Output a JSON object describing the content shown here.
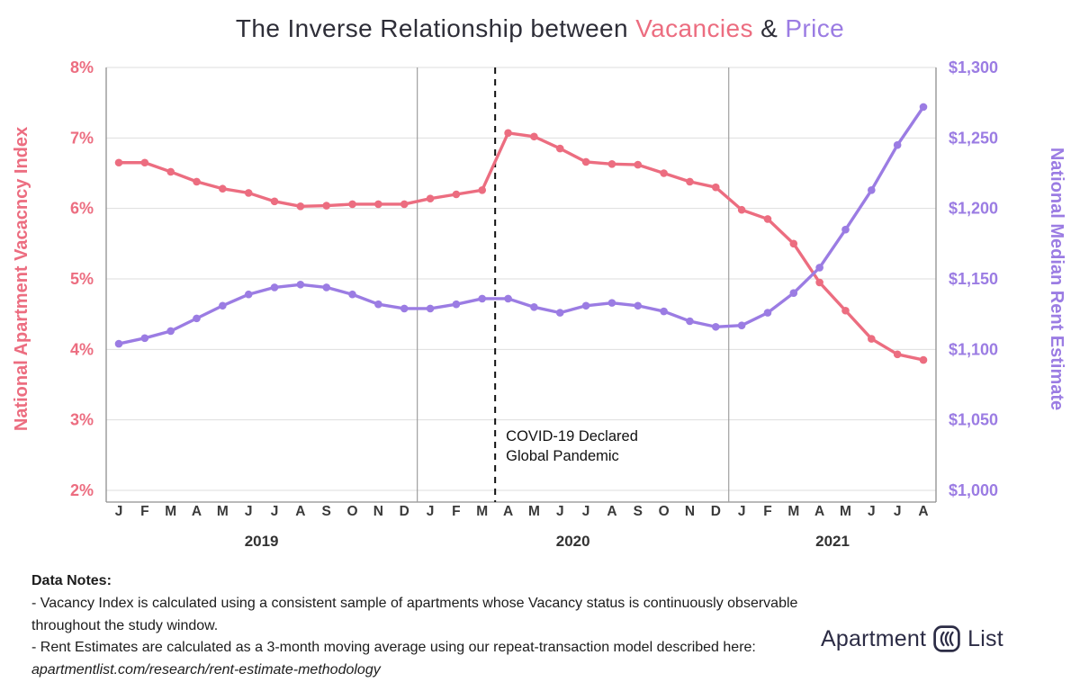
{
  "title": {
    "prefix": "The Inverse Relationship between ",
    "vacancies": "Vacancies",
    "amp": " & ",
    "price": "Price"
  },
  "colors": {
    "vacancy": "#ec6d80",
    "rent": "#9b7ce3",
    "title_dark": "#2e2e38",
    "grid": "#dedede",
    "axis": "#8f8f8f",
    "label_dark": "#333333"
  },
  "chart_data": {
    "type": "line",
    "months": [
      "J",
      "F",
      "M",
      "A",
      "M",
      "J",
      "J",
      "A",
      "S",
      "O",
      "N",
      "D",
      "J",
      "F",
      "M",
      "A",
      "M",
      "J",
      "J",
      "A",
      "S",
      "O",
      "N",
      "D",
      "J",
      "F",
      "M",
      "A",
      "M",
      "J",
      "J",
      "A"
    ],
    "years": [
      {
        "label": "2019",
        "start": 0,
        "end": 11
      },
      {
        "label": "2020",
        "start": 12,
        "end": 23
      },
      {
        "label": "2021",
        "start": 24,
        "end": 31
      }
    ],
    "series": [
      {
        "name": "National Apartment Vacancy Index",
        "axis": "left",
        "color": "#ec6d80",
        "values": [
          6.65,
          6.65,
          6.52,
          6.38,
          6.28,
          6.22,
          6.1,
          6.03,
          6.04,
          6.06,
          6.06,
          6.06,
          6.14,
          6.2,
          6.26,
          7.07,
          7.02,
          6.85,
          6.66,
          6.63,
          6.62,
          6.5,
          6.38,
          6.3,
          5.98,
          5.85,
          5.5,
          4.95,
          4.55,
          4.15,
          3.93,
          3.85
        ]
      },
      {
        "name": "National Median Rent Estimate",
        "axis": "right",
        "color": "#9b7ce3",
        "values": [
          1104,
          1108,
          1113,
          1122,
          1131,
          1139,
          1144,
          1146,
          1144,
          1139,
          1132,
          1129,
          1129,
          1132,
          1136,
          1136,
          1130,
          1126,
          1131,
          1133,
          1131,
          1127,
          1120,
          1116,
          1117,
          1126,
          1140,
          1158,
          1185,
          1213,
          1245,
          1272
        ]
      }
    ],
    "left_axis": {
      "title": "National Apartment Vacacncy Index",
      "ticks": [
        "8%",
        "7%",
        "6%",
        "5%",
        "4%",
        "3%",
        "2%"
      ],
      "tick_values": [
        8,
        7,
        6,
        5,
        4,
        3,
        2
      ],
      "range": [
        2,
        8
      ]
    },
    "right_axis": {
      "title": "National Median Rent Estimate",
      "ticks": [
        "$1,300",
        "$1,250",
        "$1,200",
        "$1,150",
        "$1,100",
        "$1,050",
        "$1,000"
      ],
      "tick_values": [
        1300,
        1250,
        1200,
        1150,
        1100,
        1050,
        1000
      ],
      "range": [
        1000,
        1300
      ]
    },
    "annotation": {
      "lines": [
        "COVID-19 Declared",
        "Global Pandemic"
      ],
      "at_month_index": 14.5
    },
    "grid": true,
    "legend_position": "none"
  },
  "notes": {
    "heading": "Data Notes:",
    "line1": "- Vacancy Index is calculated using a consistent sample of apartments whose Vacancy status is continuously observable throughout the study window.",
    "line2_prefix": "- Rent Estimates are calculated as a 3-month moving average using our repeat-transaction model described here: ",
    "line2_link": "apartmentlist.com/research/rent-estimate-methodology"
  },
  "logo": {
    "word1": "Apartment",
    "word2": "List"
  }
}
